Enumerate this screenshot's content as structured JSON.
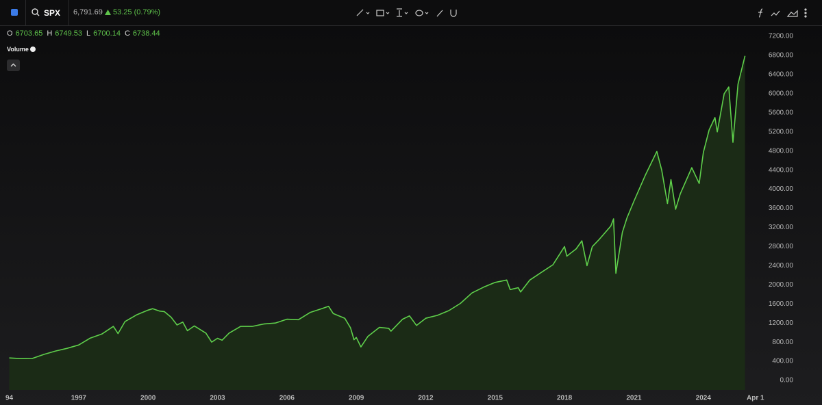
{
  "header": {
    "symbol": "SPX",
    "price": "6,791.69",
    "change": "53.25 (0.79%)",
    "ohlc": [
      {
        "key": "O",
        "value": "6703.65"
      },
      {
        "key": "H",
        "value": "6749.53"
      },
      {
        "key": "L",
        "value": "6700.14"
      },
      {
        "key": "C",
        "value": "6738.44"
      }
    ],
    "volume_label": "Volume"
  },
  "chart_data": {
    "type": "area",
    "x": [
      1994.0,
      1994.5,
      1995.0,
      1995.5,
      1996.0,
      1996.5,
      1997.0,
      1997.5,
      1998.0,
      1998.5,
      1998.7,
      1999.0,
      1999.5,
      2000.0,
      2000.2,
      2000.5,
      2000.7,
      2001.0,
      2001.25,
      2001.5,
      2001.7,
      2002.0,
      2002.5,
      2002.75,
      2003.0,
      2003.2,
      2003.5,
      2004.0,
      2004.5,
      2005.0,
      2005.5,
      2006.0,
      2006.5,
      2007.0,
      2007.5,
      2007.8,
      2008.0,
      2008.5,
      2008.75,
      2008.9,
      2009.0,
      2009.2,
      2009.5,
      2010.0,
      2010.4,
      2010.5,
      2011.0,
      2011.3,
      2011.6,
      2012.0,
      2012.5,
      2013.0,
      2013.5,
      2014.0,
      2014.5,
      2015.0,
      2015.5,
      2015.65,
      2016.0,
      2016.1,
      2016.5,
      2017.0,
      2017.5,
      2018.0,
      2018.1,
      2018.5,
      2018.75,
      2018.97,
      2019.2,
      2019.5,
      2020.0,
      2020.12,
      2020.22,
      2020.5,
      2020.7,
      2021.0,
      2021.5,
      2021.99,
      2022.2,
      2022.45,
      2022.6,
      2022.8,
      2023.0,
      2023.5,
      2023.82,
      2024.0,
      2024.25,
      2024.5,
      2024.6,
      2024.9,
      2025.1,
      2025.28,
      2025.5,
      2025.8
    ],
    "values": [
      470,
      455,
      460,
      545,
      615,
      670,
      740,
      885,
      970,
      1130,
      980,
      1230,
      1370,
      1470,
      1500,
      1450,
      1440,
      1320,
      1160,
      1220,
      1040,
      1140,
      990,
      800,
      880,
      840,
      990,
      1130,
      1130,
      1180,
      1200,
      1280,
      1270,
      1420,
      1500,
      1550,
      1400,
      1300,
      1100,
      850,
      900,
      700,
      920,
      1110,
      1090,
      1030,
      1280,
      1350,
      1150,
      1300,
      1360,
      1460,
      1610,
      1830,
      1950,
      2050,
      2100,
      1900,
      1940,
      1850,
      2100,
      2260,
      2420,
      2800,
      2600,
      2750,
      2920,
      2400,
      2800,
      2950,
      3230,
      3380,
      2240,
      3100,
      3400,
      3750,
      4300,
      4790,
      4400,
      3700,
      4200,
      3580,
      3900,
      4450,
      4120,
      4770,
      5240,
      5500,
      5200,
      6000,
      6140,
      4980,
      6200,
      6790
    ],
    "color": "#5fd04b",
    "area_color": "#1b2b16",
    "xlim": [
      1993.6,
      2027.5
    ],
    "xticks": [
      {
        "value": 1994,
        "label": "94"
      },
      1997,
      2000,
      2003,
      2006,
      2009,
      2012,
      2015,
      2018,
      2021,
      2024,
      {
        "value": 2026.25,
        "label": "Apr 1"
      }
    ],
    "ylim": [
      -200,
      7415
    ],
    "yticks": [
      {
        "value": 0,
        "label": "0.00"
      },
      {
        "value": 400,
        "label": "400.00"
      },
      {
        "value": 800,
        "label": "800.00"
      },
      {
        "value": 1200,
        "label": "1200.00"
      },
      {
        "value": 1600,
        "label": "1600.00"
      },
      {
        "value": 2000,
        "label": "2000.00"
      },
      {
        "value": 2400,
        "label": "2400.00"
      },
      {
        "value": 2800,
        "label": "2800.00"
      },
      {
        "value": 3200,
        "label": "3200.00"
      },
      {
        "value": 3600,
        "label": "3600.00"
      },
      {
        "value": 4000,
        "label": "4000.00"
      },
      {
        "value": 4400,
        "label": "4400.00"
      },
      {
        "value": 4800,
        "label": "4800.00"
      },
      {
        "value": 5200,
        "label": "5200.00"
      },
      {
        "value": 5600,
        "label": "5600.00"
      },
      {
        "value": 6000,
        "label": "6000.00"
      },
      {
        "value": 6400,
        "label": "6400.00"
      },
      {
        "value": 6800,
        "label": "6800.00"
      },
      {
        "value": 7200,
        "label": "7200.00"
      }
    ]
  }
}
